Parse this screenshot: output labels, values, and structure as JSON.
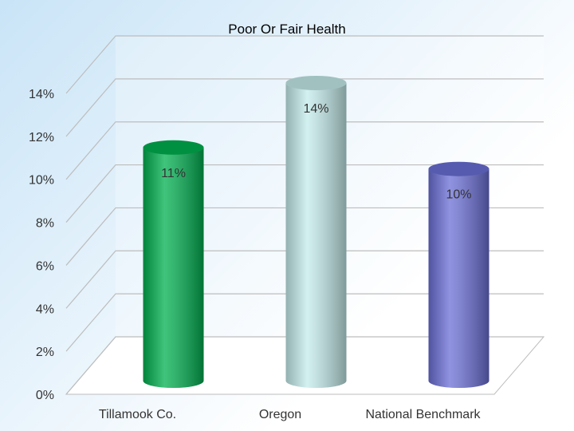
{
  "chart_data": {
    "type": "bar",
    "title": "Poor Or Fair Health",
    "xlabel": "",
    "ylabel": "",
    "categories": [
      "Tillamook Co.",
      "Oregon",
      "National Benchmark"
    ],
    "values": [
      11,
      14,
      10
    ],
    "data_labels": [
      "11%",
      "14%",
      "10%"
    ],
    "yticks": [
      "0%",
      "2%",
      "4%",
      "6%",
      "8%",
      "10%",
      "12%",
      "14%"
    ],
    "ylim": [
      0,
      14
    ],
    "grid": true,
    "style": "3d-cylinder",
    "colors": [
      "#00b050",
      "#c5ecec",
      "#6b6fd6"
    ]
  }
}
